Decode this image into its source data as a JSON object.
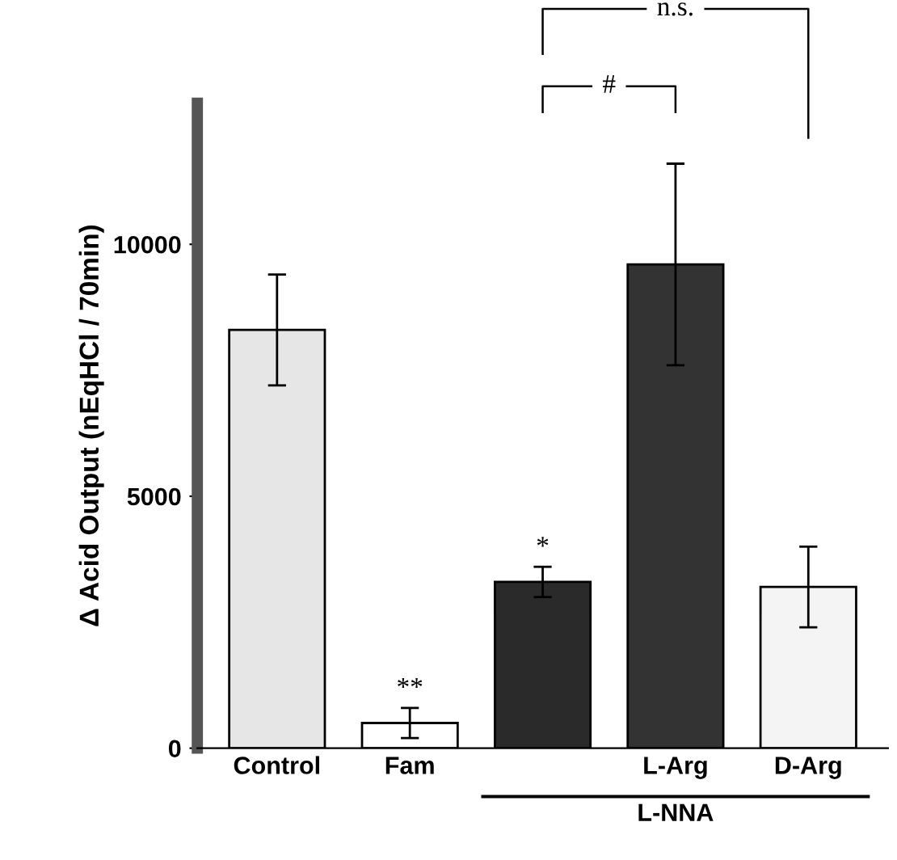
{
  "chart_data": {
    "type": "bar",
    "ylabel": "Δ Acid Output (nEqHCl / 70min)",
    "categories": [
      "Control",
      "Fam",
      null,
      "L-Arg",
      "D-Arg"
    ],
    "values": [
      8300,
      500,
      3300,
      9600,
      3200
    ],
    "errors": [
      1100,
      300,
      300,
      2000,
      800
    ],
    "colors": [
      "#e6e6e6",
      "#ffffff",
      "#2a2a2a",
      "#333333",
      "#f4f4f4"
    ],
    "ylim": [
      0,
      12800
    ],
    "yticks": [
      0,
      5000,
      10000
    ],
    "grid": false,
    "annotations": [
      "**",
      "*",
      "#",
      "n.s.",
      "L-NNA"
    ]
  }
}
